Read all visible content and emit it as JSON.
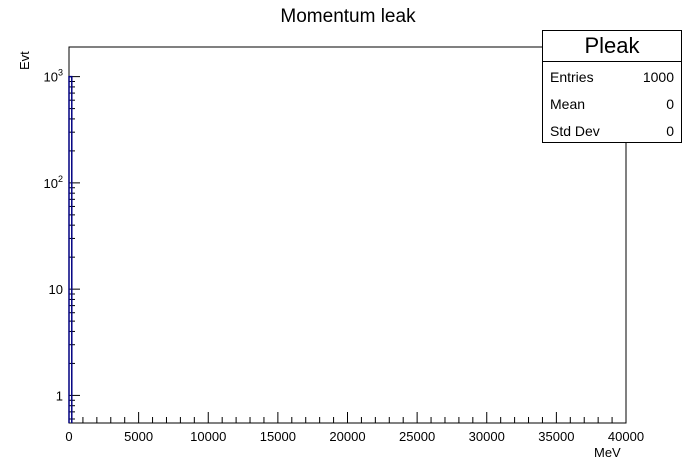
{
  "chart_data": {
    "type": "bar",
    "title": "Momentum leak",
    "xlabel": "MeV",
    "ylabel": "Evt",
    "xlim": [
      0,
      40000
    ],
    "ylim": [
      0.55,
      1900
    ],
    "ylog": true,
    "x_ticks": [
      0,
      5000,
      10000,
      15000,
      20000,
      25000,
      30000,
      35000,
      40000
    ],
    "x_tick_labels": [
      "0",
      "5000",
      "10000",
      "15000",
      "20000",
      "25000",
      "30000",
      "35000",
      "40000"
    ],
    "y_ticks": [
      1,
      10,
      100,
      1000
    ],
    "y_tick_labels": [
      "1",
      "10",
      "10^2",
      "10^3"
    ],
    "bins": [
      {
        "x_low": 0,
        "x_high": 200,
        "value": 1000
      }
    ],
    "line_color": "#000080",
    "stats": {
      "name": "Pleak",
      "rows": [
        {
          "label": "Entries",
          "value": "1000"
        },
        {
          "label": "Mean",
          "value": "0"
        },
        {
          "label": "Std Dev",
          "value": "0"
        }
      ]
    }
  }
}
